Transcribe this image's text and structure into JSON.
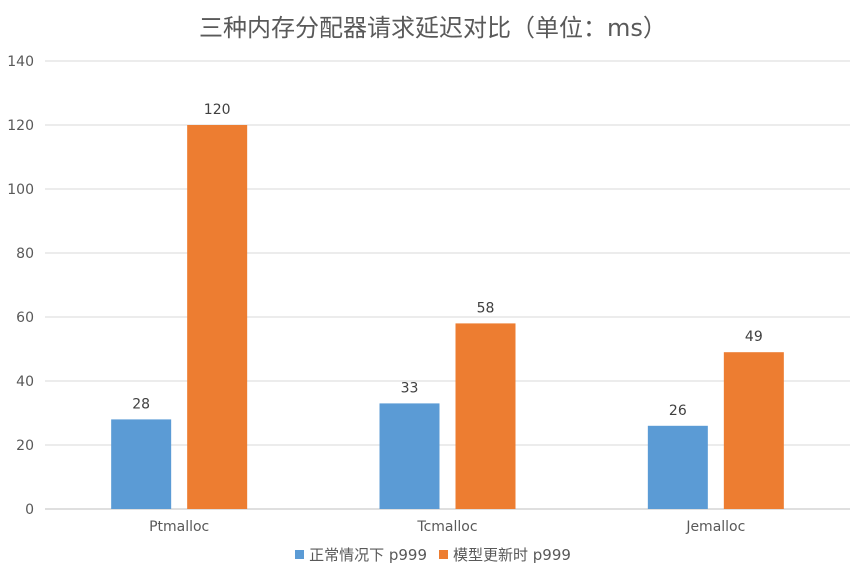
{
  "chart_data": {
    "type": "bar",
    "title": "三种内存分配器请求延迟对比（单位：ms）",
    "categories": [
      "Ptmalloc",
      "Tcmalloc",
      "Jemalloc"
    ],
    "series": [
      {
        "name": "正常情况下 p999",
        "values": [
          28,
          33,
          26
        ],
        "color": "#5B9BD5"
      },
      {
        "name": "模型更新时 p999",
        "values": [
          120,
          58,
          49
        ],
        "color": "#ED7D31"
      }
    ],
    "ylim": [
      0,
      140
    ],
    "yticks": [
      0,
      20,
      40,
      60,
      80,
      100,
      120,
      140
    ],
    "grid": true,
    "legend_position": "bottom",
    "data_labels": true
  }
}
